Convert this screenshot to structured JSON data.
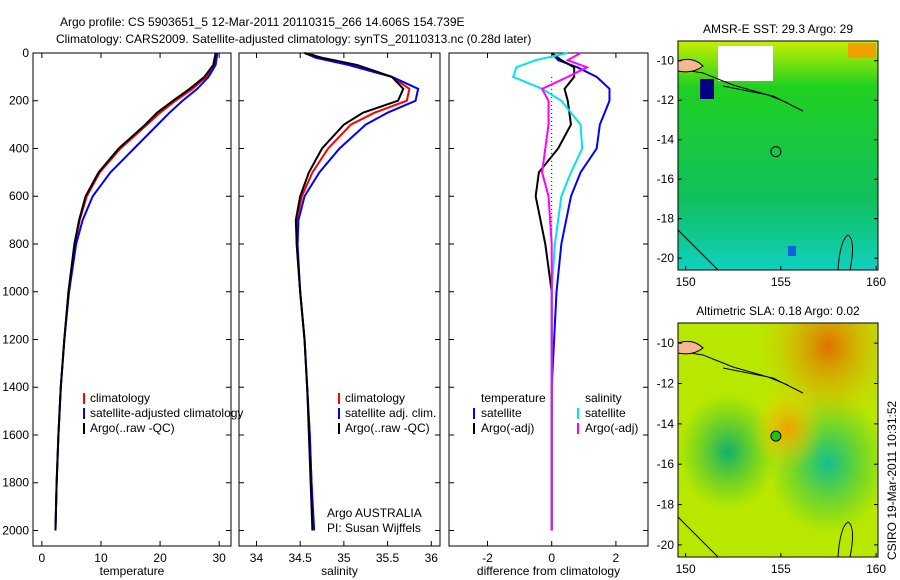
{
  "title_line1": "Argo profile: CS 5903651_5 12-Mar-2011 20110315_266 14.606S 154.739E",
  "title_line2": "Climatology: CARS2009. Satellite-adjusted climatology: synTS_20110313.nc (0.28d later)",
  "credit": "CSIRO 19-Mar-2011 10:31:52",
  "chart_data": [
    {
      "type": "line",
      "name": "temperature-panel",
      "xlabel": "temperature",
      "ylabel": "depth",
      "xlim": [
        -1.5,
        32
      ],
      "ylim": [
        0,
        2065
      ],
      "yreverse": true,
      "xticks": [
        0,
        10,
        20,
        30
      ],
      "yticks": [
        0,
        200,
        400,
        600,
        800,
        1000,
        1200,
        1400,
        1600,
        1800,
        2000
      ],
      "depth": [
        0,
        50,
        100,
        150,
        200,
        250,
        300,
        400,
        500,
        600,
        700,
        800,
        1000,
        1200,
        1400,
        1600,
        1800,
        2000
      ],
      "series": [
        {
          "name": "climatology",
          "color": "#ff0000",
          "values": [
            29.6,
            29.2,
            27.8,
            25.5,
            22.6,
            20,
            17.8,
            13.3,
            9.8,
            7.6,
            6.4,
            5.6,
            4.5,
            3.8,
            3.2,
            2.8,
            2.5,
            2.3
          ]
        },
        {
          "name": "satellite-adjusted climatology",
          "color": "#0000ff",
          "values": [
            29.7,
            29.4,
            28.2,
            26.3,
            23.8,
            21.6,
            19.6,
            15.6,
            11.6,
            8.6,
            6.9,
            5.8,
            4.6,
            3.8,
            3.2,
            2.8,
            2.5,
            2.3
          ]
        },
        {
          "name": "Argo(..raw -QC)",
          "color": "#000000",
          "values": [
            29.4,
            29,
            27.5,
            25,
            22.2,
            19.5,
            17.5,
            13,
            9.6,
            7.4,
            6.3,
            5.5,
            4.5,
            3.8,
            3.2,
            2.8,
            2.5,
            2.3
          ]
        }
      ],
      "legend": [
        "climatology",
        "satellite-adjusted climatology",
        "Argo(..raw -QC)"
      ],
      "legend_position": "bottom-center"
    },
    {
      "type": "line",
      "name": "salinity-panel",
      "xlabel": "salinity",
      "xlim": [
        33.8,
        36.1
      ],
      "ylim": [
        0,
        2065
      ],
      "yreverse": true,
      "xticks": [
        34,
        34.5,
        35,
        35.5,
        36
      ],
      "depth": [
        0,
        20,
        50,
        100,
        150,
        200,
        250,
        300,
        400,
        500,
        600,
        700,
        800,
        1000,
        1200,
        1400,
        1600,
        1800,
        2000
      ],
      "series": [
        {
          "name": "climatology",
          "color": "#ff0000",
          "values": [
            34.6,
            34.72,
            35.1,
            35.55,
            35.75,
            35.72,
            35.35,
            35.08,
            34.82,
            34.64,
            34.52,
            34.46,
            34.46,
            34.5,
            34.55,
            34.58,
            34.61,
            34.63,
            34.65
          ]
        },
        {
          "name": "satellite adj. clim.",
          "color": "#0000ff",
          "values": [
            34.55,
            34.68,
            35.05,
            35.55,
            35.85,
            35.82,
            35.5,
            35.25,
            34.95,
            34.72,
            34.55,
            34.48,
            34.47,
            34.5,
            34.55,
            34.58,
            34.61,
            34.63,
            34.66
          ]
        },
        {
          "name": "Argo(..raw -QC)",
          "color": "#000000",
          "values": [
            34.55,
            34.75,
            35.15,
            35.55,
            35.68,
            35.62,
            35.22,
            35.0,
            34.75,
            34.6,
            34.5,
            34.45,
            34.46,
            34.5,
            34.55,
            34.58,
            34.6,
            34.62,
            34.64
          ]
        }
      ],
      "legend": [
        "climatology",
        "satellite adj. clim.",
        "Argo(..raw -QC)"
      ],
      "annotation": [
        "Argo AUSTRALIA",
        "PI: Susan Wijffels"
      ]
    },
    {
      "type": "line",
      "name": "difference-panel",
      "xlabel": "difference from climatology",
      "xlim": [
        -3.2,
        3
      ],
      "ylim": [
        0,
        2065
      ],
      "yreverse": true,
      "xticks": [
        -2,
        0,
        2
      ],
      "zero_line": "dotted",
      "depth": [
        0,
        30,
        60,
        100,
        150,
        200,
        300,
        400,
        500,
        600,
        800,
        1000,
        1400,
        2000
      ],
      "series": [
        {
          "name": "temperature satellite",
          "color": "#0000ff",
          "values": [
            0,
            0.2,
            0.8,
            1.4,
            1.8,
            1.8,
            1.5,
            1.4,
            0.9,
            0.6,
            0.3,
            0.15,
            0,
            0
          ]
        },
        {
          "name": "temperature Argo(-adj)",
          "color": "#000000",
          "values": [
            0,
            0.3,
            0.7,
            0.7,
            0.4,
            0.5,
            0.6,
            0.2,
            -0.4,
            -0.5,
            -0.2,
            0,
            0,
            0
          ]
        },
        {
          "name": "salinity satellite",
          "color": "#00e5ee",
          "values": [
            0.5,
            -0.5,
            -1.1,
            -1.2,
            -0.3,
            0.3,
            0.9,
            0.95,
            0.6,
            0.3,
            0.1,
            0,
            0,
            0
          ]
        },
        {
          "name": "salinity Argo(-adj)",
          "color": "#ff00ff",
          "values": [
            0.9,
            0.5,
            1.1,
            0.5,
            -0.3,
            -0.1,
            -0.1,
            -0.2,
            -0.3,
            -0.1,
            0,
            0,
            0,
            0
          ]
        }
      ],
      "legend_headers": [
        "temperature",
        "salinity"
      ],
      "legend": [
        [
          "satellite",
          "Argo(-adj)"
        ],
        [
          "satellite",
          "Argo(-adj)"
        ]
      ]
    },
    {
      "type": "heatmap",
      "name": "sst-map",
      "title": "AMSR-E SST: 29.3 Argo: 29",
      "xlim": [
        149.6,
        160.1
      ],
      "ylim": [
        -9,
        -20.6
      ],
      "xticks": [
        150,
        155,
        160
      ],
      "yticks": [
        -10,
        -12,
        -14,
        -16,
        -18,
        -20
      ],
      "marker": [
        154.739,
        -14.606
      ]
    },
    {
      "type": "heatmap",
      "name": "sla-map",
      "title": "Altimetric SLA: 0.18 Argo: 0.02",
      "xlim": [
        149.6,
        160.1
      ],
      "ylim": [
        -9,
        -20.6
      ],
      "xticks": [
        150,
        155,
        160
      ],
      "yticks": [
        -10,
        -12,
        -14,
        -16,
        -18,
        -20
      ],
      "marker": [
        154.739,
        -14.606
      ]
    }
  ]
}
